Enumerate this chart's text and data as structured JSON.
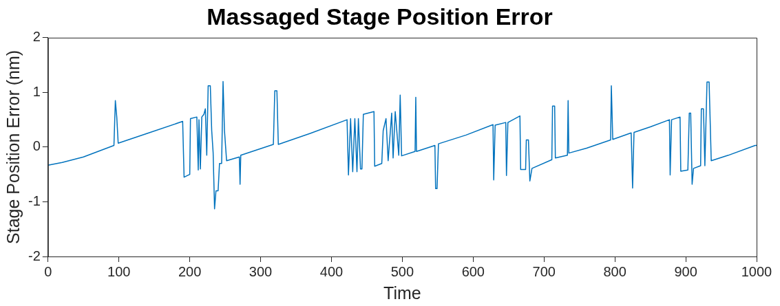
{
  "chart_data": {
    "type": "line",
    "title": "Massaged Stage Position Error",
    "xlabel": "Time",
    "ylabel": "Stage Position Error (nm)",
    "xlim": [
      0,
      1000
    ],
    "xticks": [
      0,
      100,
      200,
      300,
      400,
      500,
      600,
      700,
      800,
      900,
      1000
    ],
    "ylim": [
      -2,
      2
    ],
    "yticks": [
      -2,
      -1,
      0,
      1,
      2
    ],
    "grid": false,
    "legend": false,
    "marker": "none",
    "line_style": "solid",
    "series": [
      {
        "color": "#0072bd",
        "x": [
          0,
          20,
          50,
          93,
          95,
          97,
          99,
          140,
          190,
          192,
          200,
          201,
          210,
          212,
          213,
          215,
          217,
          220,
          222,
          224,
          226,
          229,
          231,
          233,
          235,
          237,
          240,
          242,
          245,
          247,
          249,
          252,
          270,
          271,
          272,
          318,
          320,
          323,
          325,
          370,
          422,
          424,
          427,
          430,
          433,
          436,
          438,
          441,
          443,
          445,
          460,
          461,
          471,
          473,
          477,
          480,
          485,
          487,
          490,
          495,
          497,
          499,
          518,
          519,
          520,
          546,
          547,
          549,
          551,
          590,
          628,
          629,
          631,
          646,
          647,
          649,
          666,
          667,
          674,
          675,
          678,
          680,
          683,
          711,
          712,
          715,
          716,
          733,
          734,
          735,
          760,
          794,
          795,
          797,
          823,
          825,
          827,
          850,
          877,
          878,
          880,
          892,
          893,
          903,
          905,
          907,
          909,
          911,
          921,
          922,
          925,
          927,
          930,
          933,
          936,
          960,
          998,
          1000
        ],
        "values": [
          -0.33,
          -0.28,
          -0.18,
          0.03,
          0.85,
          0.55,
          0.07,
          0.25,
          0.47,
          -0.55,
          -0.5,
          0.52,
          0.55,
          -0.42,
          0.5,
          -0.4,
          0.55,
          0.6,
          0.7,
          -0.15,
          1.12,
          1.12,
          0.3,
          -0.1,
          -1.13,
          -0.8,
          -0.8,
          -0.3,
          -0.3,
          1.2,
          0.3,
          -0.25,
          -0.18,
          -0.68,
          -0.15,
          0.05,
          1.03,
          1.03,
          0.05,
          0.25,
          0.5,
          -0.51,
          0.52,
          -0.45,
          0.52,
          -0.45,
          0.52,
          -0.4,
          -0.4,
          0.6,
          0.65,
          -0.35,
          -0.3,
          0.3,
          0.52,
          -0.25,
          0.62,
          -0.2,
          0.65,
          -0.15,
          0.95,
          -0.16,
          -0.08,
          0.91,
          -0.08,
          0.03,
          -0.76,
          -0.76,
          0.06,
          0.22,
          0.41,
          -0.6,
          0.4,
          0.45,
          -0.52,
          0.45,
          0.57,
          -0.41,
          -0.41,
          0.13,
          0.13,
          -0.62,
          -0.39,
          -0.23,
          0.75,
          0.75,
          -0.2,
          -0.15,
          0.85,
          -0.11,
          -0.02,
          0.13,
          1.12,
          0.14,
          0.26,
          -0.75,
          0.27,
          0.37,
          0.5,
          -0.51,
          0.5,
          0.55,
          -0.44,
          -0.42,
          0.62,
          0.62,
          -0.68,
          -0.39,
          -0.34,
          0.7,
          0.7,
          -0.34,
          1.19,
          1.19,
          -0.25,
          -0.15,
          0.03,
          0.03
        ]
      }
    ]
  }
}
